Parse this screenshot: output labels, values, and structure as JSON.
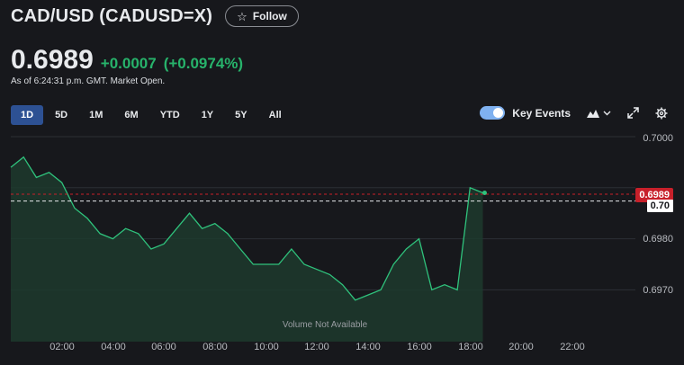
{
  "header": {
    "title": "CAD/USD (CADUSD=X)",
    "follow_label": "Follow"
  },
  "quote": {
    "price": "0.6989",
    "change": "+0.0007",
    "change_pct": "(+0.0974%)",
    "as_of": "As of 6:24:31 p.m. GMT. Market Open."
  },
  "ranges": [
    "1D",
    "5D",
    "1M",
    "6M",
    "YTD",
    "1Y",
    "5Y",
    "All"
  ],
  "active_range": "1D",
  "tools": {
    "key_events_label": "Key Events",
    "key_events_on": true
  },
  "colors": {
    "accent": "#2d5193",
    "positive": "#27b36b",
    "price_badge": "#c8202a"
  },
  "chart_data": {
    "type": "area",
    "yticks": [
      "0.7000",
      "0.6980",
      "0.6970"
    ],
    "xticks": [
      "02:00",
      "04:00",
      "06:00",
      "08:00",
      "10:00",
      "12:00",
      "14:00",
      "16:00",
      "18:00",
      "20:00",
      "22:00"
    ],
    "ylim": [
      0.6965,
      0.7002
    ],
    "current_price_label": "0.6989",
    "previous_close_label": "0.70",
    "volume_note": "Volume Not Available",
    "series": [
      {
        "x": [
          0.0,
          0.5,
          1.0,
          1.5,
          2.0,
          2.5,
          3.0,
          3.5,
          4.0,
          4.5,
          5.0,
          5.5,
          6.0,
          6.5,
          7.0,
          7.5,
          8.0,
          8.5,
          9.0,
          9.5,
          10.0,
          10.5,
          11.0,
          11.5,
          12.0,
          12.5,
          13.0,
          13.5,
          14.0,
          14.5,
          15.0,
          15.5,
          16.0,
          16.5,
          17.0,
          17.5,
          18.0,
          18.5
        ],
        "y": [
          0.6994,
          0.6996,
          0.6992,
          0.6993,
          0.6991,
          0.6986,
          0.6984,
          0.6981,
          0.698,
          0.6982,
          0.6981,
          0.6978,
          0.6979,
          0.6982,
          0.6985,
          0.6982,
          0.6983,
          0.6981,
          0.6978,
          0.6975,
          0.6975,
          0.6975,
          0.6978,
          0.6975,
          0.6974,
          0.6973,
          0.6971,
          0.6968,
          0.6969,
          0.697,
          0.6975,
          0.6978,
          0.698,
          0.697,
          0.6971,
          0.697,
          0.699,
          0.6989
        ]
      }
    ]
  }
}
